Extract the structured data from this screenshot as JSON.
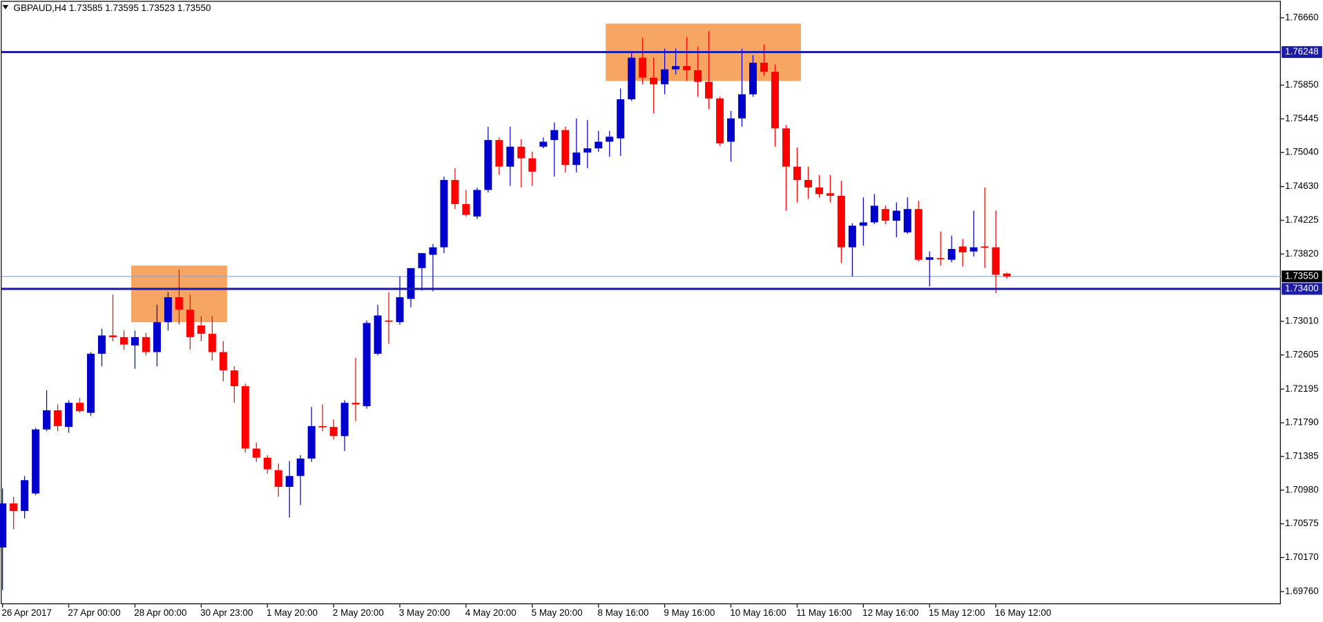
{
  "chart_data": {
    "type": "candlestick",
    "title": "GBPAUD,H4  1.73585 1.73595 1.73523 1.73550",
    "categories": [
      "26 Apr 2017",
      null,
      null,
      null,
      null,
      null,
      "27 Apr 00:00",
      null,
      null,
      null,
      null,
      null,
      "28 Apr 00:00",
      null,
      null,
      null,
      null,
      null,
      "30 Apr 23:00",
      null,
      null,
      null,
      null,
      null,
      "1 May 20:00",
      null,
      null,
      null,
      null,
      null,
      "2 May 20:00",
      null,
      null,
      null,
      null,
      null,
      "3 May 20:00",
      null,
      null,
      null,
      null,
      null,
      "4 May 20:00",
      null,
      null,
      null,
      null,
      null,
      "5 May 20:00",
      null,
      null,
      null,
      null,
      null,
      "8 May 16:00",
      null,
      null,
      null,
      null,
      null,
      "9 May 16:00",
      null,
      null,
      null,
      null,
      null,
      "10 May 16:00",
      null,
      null,
      null,
      null,
      null,
      "11 May 16:00",
      null,
      null,
      null,
      null,
      null,
      "12 May 16:00",
      null,
      null,
      null,
      null,
      null,
      "15 May 12:00",
      null,
      null,
      null,
      null,
      null,
      "16 May 12:00",
      null
    ],
    "open": [
      1.7029,
      1.7082,
      1.7073,
      1.7094,
      1.7171,
      1.7194,
      1.7174,
      1.7203,
      1.7191,
      1.7262,
      1.7284,
      1.7282,
      1.7272,
      1.7282,
      1.7264,
      1.73,
      1.733,
      1.7315,
      1.7296,
      1.7286,
      1.7264,
      1.7242,
      1.7223,
      1.7148,
      1.7137,
      1.7122,
      1.7102,
      1.7115,
      1.7136,
      1.7175,
      1.7174,
      1.7163,
      1.7203,
      1.7199,
      1.7262,
      1.7302,
      1.73,
      1.7328,
      1.7365,
      1.7381,
      1.739,
      1.7471,
      1.7442,
      1.7427,
      1.7459,
      1.7519,
      1.7487,
      1.7511,
      1.7497,
      1.7511,
      1.7519,
      1.7531,
      1.7489,
      1.7504,
      1.7509,
      1.7517,
      1.7521,
      1.7568,
      1.7618,
      1.7594,
      1.7586,
      1.7604,
      1.7608,
      1.7603,
      1.7589,
      1.7569,
      1.7517,
      1.7545,
      1.7574,
      1.7612,
      1.7601,
      1.7533,
      1.7487,
      1.7471,
      1.7462,
      1.7455,
      1.7452,
      1.739,
      1.7416,
      1.742,
      1.7436,
      1.7422,
      1.7408,
      1.7436,
      1.7375,
      1.7377,
      1.7375,
      1.7391,
      1.7385,
      1.7391,
      1.739,
      1.73585
    ],
    "high": [
      1.71,
      1.709,
      1.7115,
      1.7173,
      1.7218,
      1.7201,
      1.7206,
      1.7209,
      1.7264,
      1.7292,
      1.7333,
      1.729,
      1.729,
      1.7287,
      1.7321,
      1.7336,
      1.7363,
      1.7333,
      1.7307,
      1.7307,
      1.7277,
      1.7247,
      1.7226,
      1.7155,
      1.714,
      1.713,
      1.7133,
      1.714,
      1.7198,
      1.7201,
      1.7183,
      1.7206,
      1.7257,
      1.7302,
      1.7321,
      1.7336,
      1.7355,
      1.7365,
      1.7383,
      1.7394,
      1.7475,
      1.7485,
      1.7459,
      1.7462,
      1.7535,
      1.7522,
      1.7535,
      1.752,
      1.7505,
      1.7522,
      1.754,
      1.7535,
      1.7545,
      1.7543,
      1.753,
      1.753,
      1.7581,
      1.7624,
      1.7642,
      1.7618,
      1.7629,
      1.7629,
      1.7643,
      1.7631,
      1.765,
      1.7571,
      1.7554,
      1.7629,
      1.7621,
      1.7634,
      1.761,
      1.7537,
      1.751,
      1.7487,
      1.7477,
      1.7477,
      1.747,
      1.7419,
      1.745,
      1.7454,
      1.744,
      1.7444,
      1.745,
      1.7446,
      1.7385,
      1.7409,
      1.7404,
      1.74,
      1.7434,
      1.7462,
      1.7434,
      1.73595
    ],
    "low": [
      1.6978,
      1.7051,
      1.7064,
      1.7092,
      1.7169,
      1.7169,
      1.7167,
      1.7191,
      1.7187,
      1.7247,
      1.7277,
      1.7267,
      1.7244,
      1.726,
      1.7247,
      1.729,
      1.7297,
      1.7267,
      1.7277,
      1.7254,
      1.7229,
      1.7203,
      1.7143,
      1.7132,
      1.7118,
      1.709,
      1.7065,
      1.708,
      1.7132,
      1.7169,
      1.7159,
      1.7145,
      1.7181,
      1.7196,
      1.726,
      1.7274,
      1.7297,
      1.7318,
      1.7338,
      1.7337,
      1.7383,
      1.7436,
      1.7427,
      1.7424,
      1.7456,
      1.7477,
      1.7464,
      1.7462,
      1.7464,
      1.7509,
      1.7475,
      1.748,
      1.748,
      1.7485,
      1.7505,
      1.7499,
      1.75,
      1.7566,
      1.7586,
      1.7551,
      1.7574,
      1.7598,
      1.759,
      1.7571,
      1.7556,
      1.7512,
      1.7493,
      1.7535,
      1.7571,
      1.7596,
      1.7511,
      1.7434,
      1.7444,
      1.7448,
      1.745,
      1.7444,
      1.7371,
      1.7355,
      1.7392,
      1.7418,
      1.7418,
      1.7402,
      1.7406,
      1.7373,
      1.7343,
      1.7368,
      1.7372,
      1.7367,
      1.7379,
      1.7365,
      1.7335,
      1.73523
    ],
    "close": [
      1.7082,
      1.7073,
      1.711,
      1.7171,
      1.7194,
      1.7175,
      1.7203,
      1.7193,
      1.7262,
      1.7284,
      1.7282,
      1.7273,
      1.7282,
      1.7264,
      1.73,
      1.733,
      1.7315,
      1.7282,
      1.7286,
      1.7264,
      1.7242,
      1.7223,
      1.7148,
      1.7137,
      1.7123,
      1.7102,
      1.7115,
      1.7136,
      1.7175,
      1.7174,
      1.7163,
      1.7203,
      1.7201,
      1.7299,
      1.7308,
      1.7301,
      1.733,
      1.7365,
      1.7383,
      1.739,
      1.7471,
      1.7442,
      1.7429,
      1.7459,
      1.7519,
      1.7487,
      1.7511,
      1.7497,
      1.7481,
      1.7517,
      1.7531,
      1.7489,
      1.7504,
      1.7509,
      1.7517,
      1.7523,
      1.7568,
      1.7618,
      1.7594,
      1.7586,
      1.7604,
      1.7608,
      1.7603,
      1.7589,
      1.7569,
      1.7515,
      1.7545,
      1.7574,
      1.7612,
      1.7601,
      1.7533,
      1.7487,
      1.7471,
      1.7462,
      1.7454,
      1.7452,
      1.739,
      1.7416,
      1.742,
      1.744,
      1.7422,
      1.7434,
      1.7436,
      1.7375,
      1.7378,
      1.7376,
      1.7388,
      1.7384,
      1.739,
      1.739,
      1.7357,
      1.7355
    ],
    "up_color": "#0000cd",
    "down_color": "#ff0000",
    "ylim": [
      1.69608,
      1.76863
    ],
    "yticks": [
      {
        "value": 1.7666,
        "label": "1.76660"
      },
      {
        "value": 1.7585,
        "label": "1.75850"
      },
      1.75445,
      {
        "value": 1.7504,
        "label": "1.75040"
      },
      {
        "value": 1.7463,
        "label": "1.74630"
      },
      1.74225,
      {
        "value": 1.7382,
        "label": "1.73820"
      },
      {
        "value": 1.7301,
        "label": "1.73010"
      },
      1.72605,
      1.72195,
      {
        "value": 1.7179,
        "label": "1.71790"
      },
      1.71385,
      {
        "value": 1.7098,
        "label": "1.70980"
      },
      1.70575,
      {
        "value": 1.7017,
        "label": "1.70170"
      },
      {
        "value": 1.6976,
        "label": "1.69760"
      }
    ],
    "hlines": [
      {
        "value": 1.76248,
        "label": "1.76248"
      },
      {
        "value": 1.734,
        "label": "1.73400"
      }
    ],
    "hline_color": "#1c1ca8",
    "current_price": {
      "value": 1.7355,
      "label": "1.73550"
    },
    "current_price_color": "#8fa8cc",
    "zones": [
      {
        "from": 12,
        "to": 20,
        "low": 1.73,
        "high": 1.7368
      },
      {
        "from": 55,
        "to": 72,
        "low": 1.759,
        "high": 1.7659
      }
    ],
    "zone_color": "#f5a05a"
  }
}
